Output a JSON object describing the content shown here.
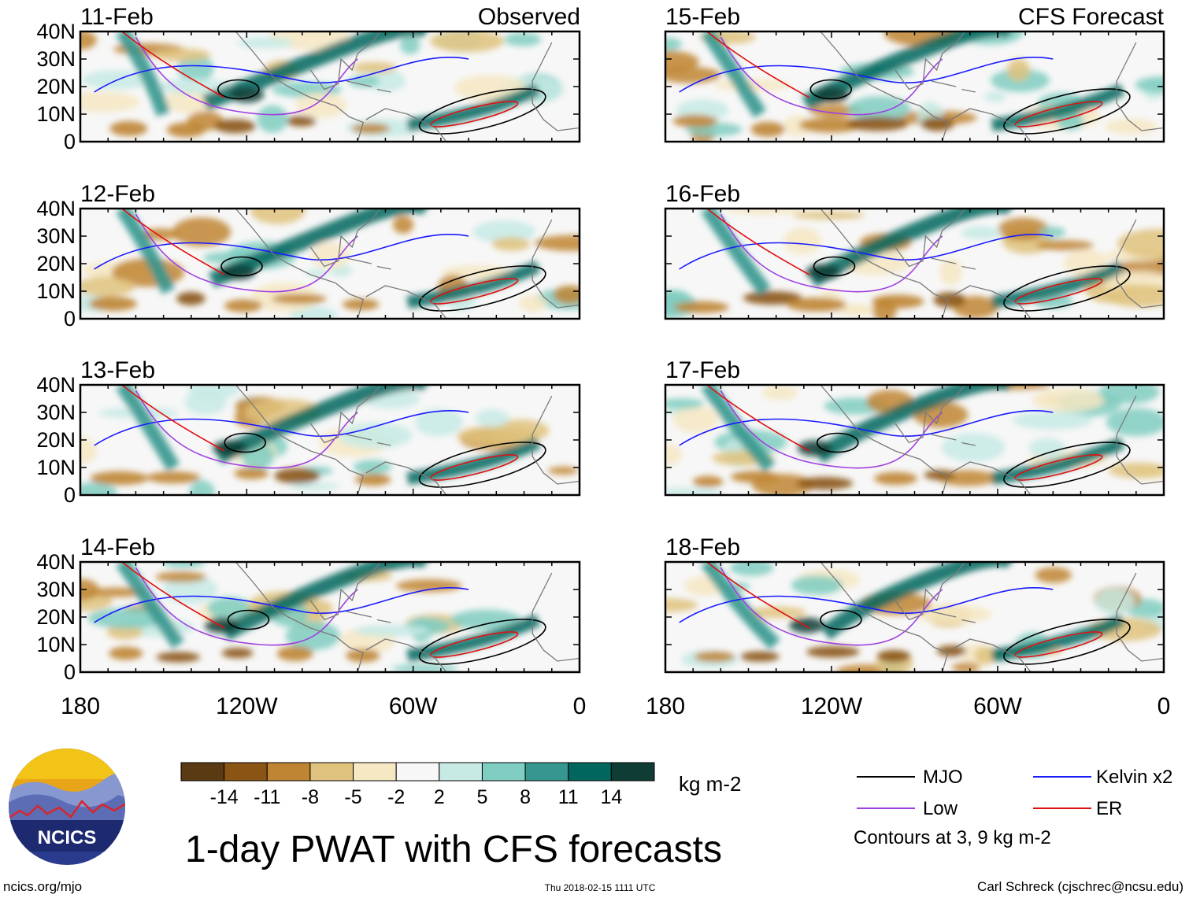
{
  "header": {
    "left_label": "Observed",
    "right_label": "CFS Forecast"
  },
  "panels": [
    {
      "date": "11-Feb",
      "column": "observed",
      "row": 0
    },
    {
      "date": "12-Feb",
      "column": "observed",
      "row": 1
    },
    {
      "date": "13-Feb",
      "column": "observed",
      "row": 2
    },
    {
      "date": "14-Feb",
      "column": "observed",
      "row": 3
    },
    {
      "date": "15-Feb",
      "column": "forecast",
      "row": 0
    },
    {
      "date": "16-Feb",
      "column": "forecast",
      "row": 1
    },
    {
      "date": "17-Feb",
      "column": "forecast",
      "row": 2
    },
    {
      "date": "18-Feb",
      "column": "forecast",
      "row": 3
    }
  ],
  "axes": {
    "lat_ticks": [
      "40N",
      "30N",
      "20N",
      "10N",
      "0"
    ],
    "lat_values": [
      40,
      30,
      20,
      10,
      0
    ],
    "lon_ticks": [
      "180",
      "120W",
      "60W",
      "0"
    ],
    "lon_values": [
      -180,
      -120,
      -60,
      0
    ],
    "lat_range": [
      0,
      40
    ],
    "lon_range": [
      -180,
      0
    ]
  },
  "colorbar": {
    "units": "kg m-2",
    "tick_labels": [
      "-14",
      "-11",
      "-8",
      "-5",
      "-2",
      "2",
      "5",
      "8",
      "11",
      "14"
    ],
    "colors": [
      "#5a3a12",
      "#8a5514",
      "#bf8533",
      "#dfc27d",
      "#f6e8c3",
      "#f7f7f7",
      "#c7eae5",
      "#80cdc1",
      "#35978f",
      "#01665e",
      "#0f3d35"
    ]
  },
  "legend": {
    "items": [
      {
        "label": "MJO",
        "color": "#000000"
      },
      {
        "label": "Kelvin x2",
        "color": "#1a1aff"
      },
      {
        "label": "Low",
        "color": "#a040e0"
      },
      {
        "label": "ER",
        "color": "#e01010"
      }
    ],
    "note": "Contours at 3, 9 kg m-2"
  },
  "title": "1-day PWAT with CFS forecasts",
  "footer": {
    "left": "ncics.org/mjo",
    "center": "Thu 2018-02-15 1111 UTC",
    "right": "Carl Schreck (cjschrec@ncsu.edu)"
  },
  "logo": {
    "text": "NCICS"
  }
}
